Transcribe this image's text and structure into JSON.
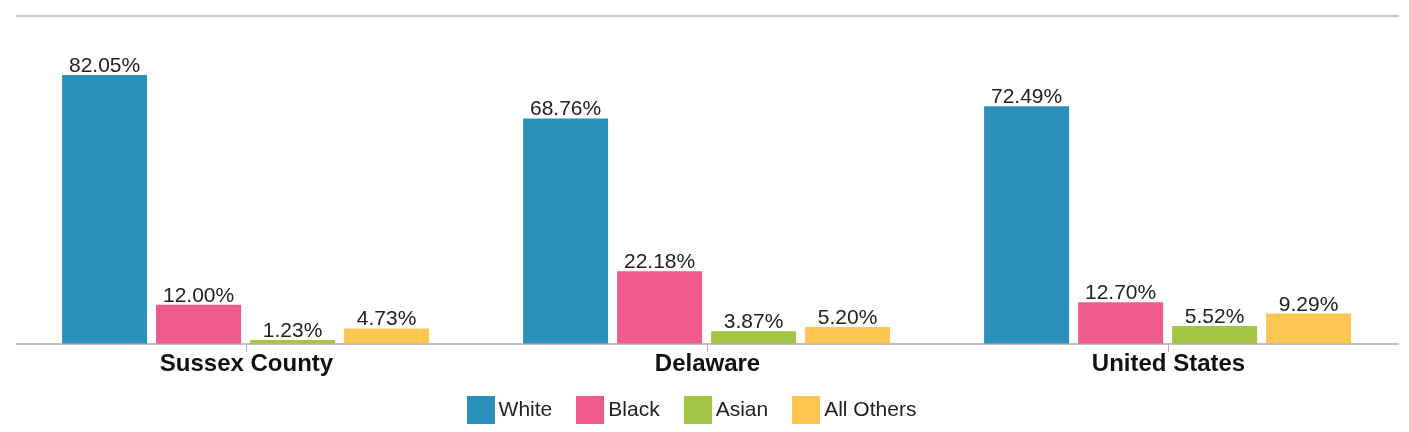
{
  "chart_data": {
    "type": "bar",
    "categories": [
      "Sussex County",
      "Delaware",
      "United States"
    ],
    "series": [
      {
        "name": "White",
        "color": "#2a90ba",
        "values": [
          82.05,
          68.76,
          72.49
        ],
        "value_labels": [
          "82.05%",
          "68.76%",
          "72.49%"
        ]
      },
      {
        "name": "Black",
        "color": "#ef5a8e",
        "values": [
          12.0,
          22.18,
          12.7
        ],
        "value_labels": [
          "12.00%",
          "22.18%",
          "12.70%"
        ]
      },
      {
        "name": "Asian",
        "color": "#a3c644",
        "values": [
          1.23,
          3.87,
          5.52
        ],
        "value_labels": [
          "1.23%",
          "3.87%",
          "5.52%"
        ]
      },
      {
        "name": "All Others",
        "color": "#fdc652",
        "values": [
          4.73,
          5.2,
          9.29
        ],
        "value_labels": [
          "4.73%",
          "5.20%",
          "9.29%"
        ]
      }
    ],
    "ylim": [
      0,
      100
    ],
    "tick_labels": "x",
    "grid": "y",
    "legend": "bottom"
  }
}
